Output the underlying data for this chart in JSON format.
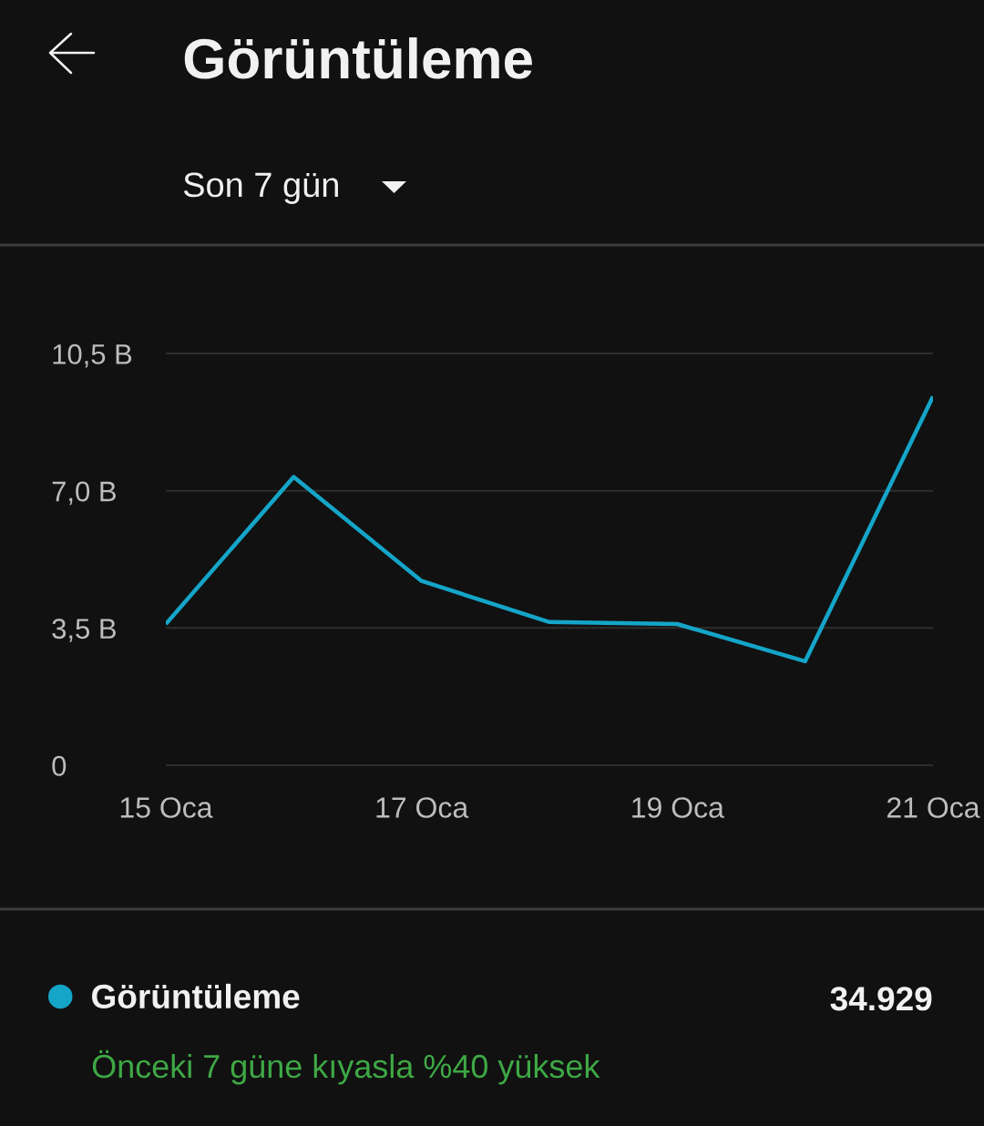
{
  "chart_data": {
    "type": "line",
    "title": "Görüntüleme",
    "subtitle": "Son 7 gün",
    "categories": [
      "15 Oca",
      null,
      "17 Oca",
      null,
      "19 Oca",
      null,
      "21 Oca"
    ],
    "series": [
      {
        "name": "Görüntüleme",
        "color": "#14a5c8",
        "values": [
          3.6,
          7.35,
          4.7,
          3.65,
          3.6,
          2.65,
          9.4
        ]
      }
    ],
    "ylim": [
      0,
      10.5
    ],
    "yticks": [
      0,
      {
        "value": 3.5,
        "label": "3,5 B"
      },
      {
        "value": 7,
        "label": "7,0 B"
      },
      {
        "value": 10.5,
        "label": "10,5 B"
      }
    ],
    "grid": "y",
    "legend": "bottom left",
    "line_style": "solid",
    "annotations": [
      "34.929",
      "Önceki 7 güne kıyasla %40 yüksek"
    ]
  }
}
